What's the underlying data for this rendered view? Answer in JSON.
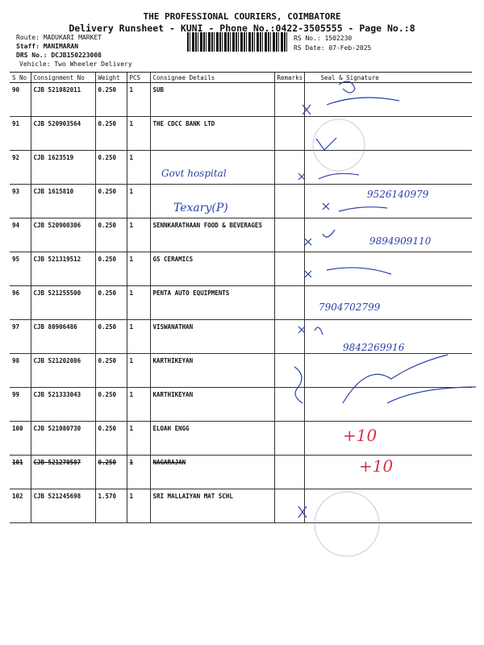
{
  "header": {
    "company": "THE PROFESSIONAL COURIERS, COIMBATORE",
    "subtitle": "Delivery Runsheet - KUNI - Phone No.:0422-3505555 - Page No.:8",
    "route": "Route: MADUKARI MARKET",
    "staff": "Staff: MANIMARAN",
    "drs_no": "DRS No.: DCJB150223008",
    "vehicle": "Vehicle: Two Wheeler Delivery",
    "rs_no": "RS No.: 1502230",
    "rs_date": "RS Date: 07-Feb-2025"
  },
  "table": {
    "columns": [
      "S No",
      "Consignment No",
      "Weight",
      "PCS",
      "Consignee Details",
      "Remarks",
      "Seal & Signature"
    ],
    "rows": [
      {
        "sno": "90",
        "consignment": "CJB 521082011",
        "weight": "0.250",
        "pcs": "1",
        "consignee": "SUB"
      },
      {
        "sno": "91",
        "consignment": "CJB 520903564",
        "weight": "0.250",
        "pcs": "1",
        "consignee": "THE CDCC BANK LTD"
      },
      {
        "sno": "92",
        "consignment": "CJB 1623519",
        "weight": "0.250",
        "pcs": "1",
        "consignee": ""
      },
      {
        "sno": "93",
        "consignment": "CJB 1615810",
        "weight": "0.250",
        "pcs": "1",
        "consignee": ""
      },
      {
        "sno": "94",
        "consignment": "CJB 520900306",
        "weight": "0.250",
        "pcs": "1",
        "consignee": "SENNKARATHAAN FOOD & BEVERAGES"
      },
      {
        "sno": "95",
        "consignment": "CJB 521319512",
        "weight": "0.250",
        "pcs": "1",
        "consignee": "GS CERAMICS"
      },
      {
        "sno": "96",
        "consignment": "CJB 521255500",
        "weight": "0.250",
        "pcs": "1",
        "consignee": "PENTA AUTO EQUIPMENTS"
      },
      {
        "sno": "97",
        "consignment": "CJB 80906486",
        "weight": "0.250",
        "pcs": "1",
        "consignee": "VISWANATHAN"
      },
      {
        "sno": "98",
        "consignment": "CJB 521202086",
        "weight": "0.250",
        "pcs": "1",
        "consignee": "KARTHIKEYAN"
      },
      {
        "sno": "99",
        "consignment": "CJB 521333043",
        "weight": "0.250",
        "pcs": "1",
        "consignee": "KARTHIKEYAN"
      },
      {
        "sno": "100",
        "consignment": "CJB 521080730",
        "weight": "0.250",
        "pcs": "1",
        "consignee": "ELOAH ENGG"
      },
      {
        "sno": "101",
        "consignment": "CJB 521270587",
        "weight": "0.250",
        "pcs": "1",
        "consignee": "NAGARAJAN"
      },
      {
        "sno": "102",
        "consignment": "CJB 521245698",
        "weight": "1.570",
        "pcs": "1",
        "consignee": "SRI MALLAIYAN MAT SCHL"
      }
    ]
  },
  "handwriting": {
    "note_92": "Govt hospital",
    "note_93": "Texary(P)",
    "phone_93": "9526140979",
    "phone_94": "9894909110",
    "phone_96": "7904702799",
    "phone_97": "9842269916",
    "mark_100": "+10",
    "mark_101": "+10",
    "ink_color": "#2a3fa8",
    "red_ink_color": "#d0334a"
  }
}
